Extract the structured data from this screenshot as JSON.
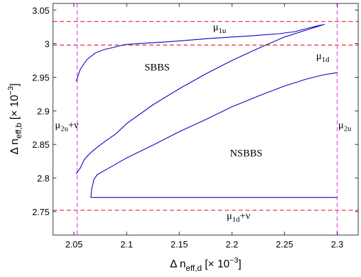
{
  "chart_data": {
    "type": "line",
    "title": "",
    "xlabel": {
      "main": "Δ n",
      "sub": "eff,d",
      "unit": " [× 10",
      "exp": "−3",
      "close": "]"
    },
    "ylabel": {
      "main": "Δ n",
      "sub": "eff,b",
      "unit": " [× 10",
      "exp": "−3",
      "close": "]"
    },
    "xlim": [
      2.03,
      2.32
    ],
    "ylim": [
      2.715,
      3.06
    ],
    "xticks": [
      2.05,
      2.1,
      2.15,
      2.2,
      2.25,
      2.3
    ],
    "xtick_labels": [
      "2.05",
      "2.1",
      "2.15",
      "2.2",
      "2.25",
      "2.3"
    ],
    "yticks": [
      2.75,
      2.8,
      2.85,
      2.9,
      2.95,
      3.0,
      3.05
    ],
    "ytick_labels": [
      "2.75",
      "2.8",
      "2.85",
      "2.9",
      "2.95",
      "3",
      "3.05"
    ],
    "grid": false,
    "colors": {
      "curve": "#0000c8",
      "hline": "#e8373a",
      "vline": "#f050f0"
    },
    "series": [
      {
        "x": [
          2.052,
          2.056,
          2.062,
          2.07,
          2.078,
          2.086,
          2.094,
          2.1,
          2.14,
          2.18,
          2.22,
          2.245,
          2.26,
          2.272,
          2.28,
          2.285
        ],
        "y": [
          2.944,
          2.962,
          2.976,
          2.986,
          2.991,
          2.994,
          2.997,
          2.999,
          3.003,
          3.008,
          3.012,
          3.015,
          3.018,
          3.023,
          3.026,
          3.028
        ]
      },
      {
        "x": [
          2.052,
          2.056,
          2.06,
          2.066,
          2.073,
          2.08,
          2.09,
          2.1,
          2.125,
          2.15,
          2.175,
          2.2,
          2.225,
          2.25,
          2.27,
          2.288
        ],
        "y": [
          2.806,
          2.815,
          2.828,
          2.838,
          2.847,
          2.855,
          2.866,
          2.881,
          2.909,
          2.933,
          2.955,
          2.975,
          2.993,
          3.01,
          3.02,
          3.029
        ]
      },
      {
        "x": [
          2.066,
          2.067,
          2.069,
          2.072,
          2.08,
          2.1,
          2.125,
          2.15,
          2.175,
          2.2,
          2.225,
          2.25,
          2.27,
          2.285,
          2.3
        ],
        "y": [
          2.771,
          2.785,
          2.798,
          2.805,
          2.812,
          2.83,
          2.849,
          2.869,
          2.887,
          2.906,
          2.922,
          2.937,
          2.947,
          2.953,
          2.957
        ]
      },
      {
        "x": [
          2.066,
          2.3
        ],
        "y": [
          2.771,
          2.771
        ]
      }
    ],
    "reference_lines": [
      {
        "orientation": "horizontal",
        "value": 3.033,
        "color": "#e8373a"
      },
      {
        "orientation": "horizontal",
        "value": 2.998,
        "color": "#e8373a"
      },
      {
        "orientation": "horizontal",
        "value": 2.752,
        "color": "#e8373a"
      },
      {
        "orientation": "vertical",
        "value": 2.053,
        "color": "#f050f0"
      },
      {
        "orientation": "vertical",
        "value": 2.3,
        "color": "#f050f0"
      }
    ],
    "annotations": [
      {
        "main": "μ",
        "sub": "1u",
        "tail": "",
        "x": 2.182,
        "y": 3.02
      },
      {
        "main": "μ",
        "sub": "1d",
        "tail": "",
        "x": 2.28,
        "y": 2.977
      },
      {
        "main": "SBBS",
        "sub": "",
        "tail": "",
        "x": 2.117,
        "y": 2.96
      },
      {
        "main": "NSBBS",
        "sub": "",
        "tail": "",
        "x": 2.198,
        "y": 2.832
      },
      {
        "main": "μ",
        "sub": "2u",
        "tail": "+ν",
        "x": 2.032,
        "y": 2.874
      },
      {
        "main": "μ",
        "sub": "2u",
        "tail": "",
        "x": 2.301,
        "y": 2.874
      },
      {
        "main": "μ",
        "sub": "1d",
        "tail": "+ν",
        "x": 2.195,
        "y": 2.739
      }
    ]
  }
}
